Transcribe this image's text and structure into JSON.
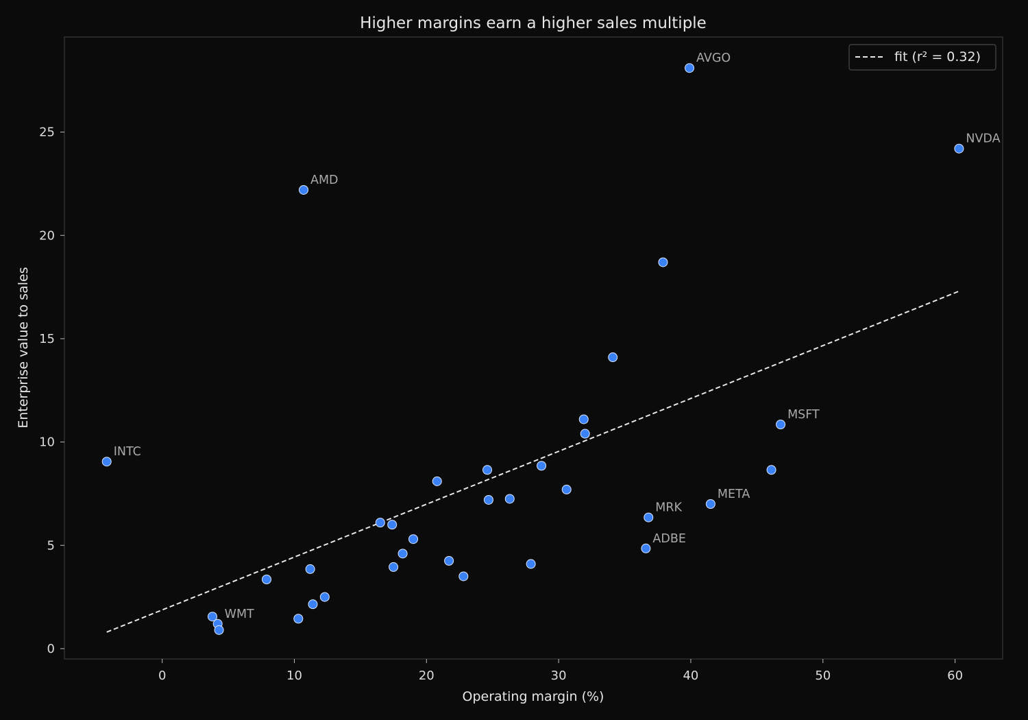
{
  "chart_data": {
    "type": "scatter",
    "title": "Higher margins earn a higher sales multiple",
    "xlabel": "Operating margin (%)",
    "ylabel": "Enterprise value to sales",
    "xlim": [
      -7.4,
      63.6
    ],
    "ylim": [
      -0.5,
      29.6
    ],
    "xticks": [
      0,
      10,
      20,
      30,
      40,
      50,
      60
    ],
    "yticks": [
      0,
      5,
      10,
      15,
      20,
      25
    ],
    "grid": false,
    "legend_position": "top-right",
    "colors": {
      "background": "#0b0b0c",
      "point_fill": "#3b82f6",
      "point_edge": "#dbe6ff",
      "fit_line": "#e8e8e8",
      "frame": "#3a3a3a"
    },
    "points": [
      {
        "x": 39.9,
        "y": 28.1,
        "label": "AVGO"
      },
      {
        "x": 60.3,
        "y": 24.2,
        "label": "NVDA"
      },
      {
        "x": 10.7,
        "y": 22.2,
        "label": "AMD"
      },
      {
        "x": 37.9,
        "y": 18.7,
        "label": ""
      },
      {
        "x": 34.1,
        "y": 14.1,
        "label": ""
      },
      {
        "x": 31.9,
        "y": 11.1,
        "label": ""
      },
      {
        "x": 32.0,
        "y": 10.4,
        "label": ""
      },
      {
        "x": 46.8,
        "y": 10.85,
        "label": "MSFT"
      },
      {
        "x": -4.2,
        "y": 9.05,
        "label": "INTC"
      },
      {
        "x": 28.7,
        "y": 8.85,
        "label": ""
      },
      {
        "x": 24.6,
        "y": 8.65,
        "label": ""
      },
      {
        "x": 46.1,
        "y": 8.65,
        "label": ""
      },
      {
        "x": 20.8,
        "y": 8.1,
        "label": ""
      },
      {
        "x": 30.6,
        "y": 7.7,
        "label": ""
      },
      {
        "x": 24.7,
        "y": 7.2,
        "label": ""
      },
      {
        "x": 26.3,
        "y": 7.25,
        "label": ""
      },
      {
        "x": 41.5,
        "y": 7.0,
        "label": "META"
      },
      {
        "x": 36.8,
        "y": 6.35,
        "label": "MRK"
      },
      {
        "x": 16.5,
        "y": 6.1,
        "label": ""
      },
      {
        "x": 17.4,
        "y": 6.0,
        "label": ""
      },
      {
        "x": 19.0,
        "y": 5.3,
        "label": ""
      },
      {
        "x": 36.6,
        "y": 4.85,
        "label": "ADBE"
      },
      {
        "x": 18.2,
        "y": 4.6,
        "label": ""
      },
      {
        "x": 21.7,
        "y": 4.25,
        "label": ""
      },
      {
        "x": 27.9,
        "y": 4.1,
        "label": ""
      },
      {
        "x": 17.5,
        "y": 3.95,
        "label": ""
      },
      {
        "x": 11.2,
        "y": 3.85,
        "label": ""
      },
      {
        "x": 22.8,
        "y": 3.5,
        "label": ""
      },
      {
        "x": 7.9,
        "y": 3.35,
        "label": ""
      },
      {
        "x": 12.3,
        "y": 2.5,
        "label": ""
      },
      {
        "x": 11.4,
        "y": 2.15,
        "label": ""
      },
      {
        "x": 3.8,
        "y": 1.55,
        "label": ""
      },
      {
        "x": 10.3,
        "y": 1.45,
        "label": ""
      },
      {
        "x": 4.2,
        "y": 1.2,
        "label": "WMT"
      },
      {
        "x": 4.3,
        "y": 0.9,
        "label": ""
      }
    ],
    "fit_line": {
      "x": [
        -4.2,
        60.3
      ],
      "y": [
        0.8,
        17.3
      ],
      "legend": "fit (r² = 0.32)"
    }
  }
}
